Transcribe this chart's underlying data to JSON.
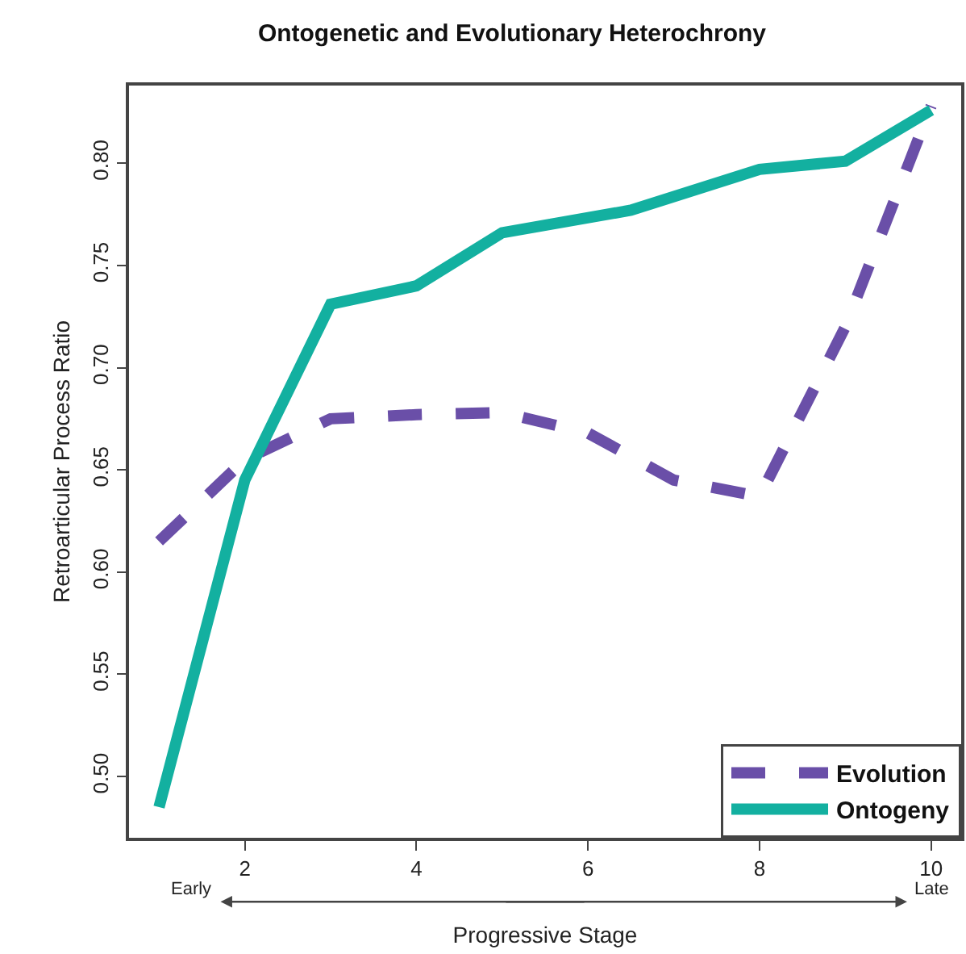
{
  "chart_data": {
    "type": "line",
    "title": "Ontogenetic and Evolutionary Heterochrony",
    "xlabel": "Progressive Stage",
    "ylabel": "Retroarticular Process Ratio",
    "series": [
      {
        "name": "Evolution",
        "color": "#6a4fa8",
        "line_style": "dashed",
        "x": [
          1,
          2,
          3,
          4,
          5,
          6,
          7,
          8,
          9,
          10
        ],
        "values": [
          0.615,
          0.655,
          0.675,
          0.677,
          0.678,
          0.668,
          0.645,
          0.637,
          0.72,
          0.828
        ]
      },
      {
        "name": "Ontogeny",
        "color": "#13b0a0",
        "line_style": "solid",
        "x": [
          1,
          2,
          3,
          4,
          5,
          6.5,
          8,
          9,
          10
        ],
        "values": [
          0.485,
          0.645,
          0.731,
          0.74,
          0.766,
          0.777,
          0.797,
          0.801,
          0.826
        ]
      }
    ],
    "xlim": [
      0.65,
      10.35
    ],
    "ylim": [
      0.47,
      0.838
    ],
    "xticks": [
      2,
      4,
      6,
      8,
      10
    ],
    "yticks": [
      {
        "value": 0.5,
        "label": "0.50"
      },
      {
        "value": 0.55,
        "label": "0.55"
      },
      {
        "value": 0.6,
        "label": "0.60"
      },
      {
        "value": 0.65,
        "label": "0.65"
      },
      {
        "value": 0.7,
        "label": "0.70"
      },
      {
        "value": 0.75,
        "label": "0.75"
      },
      {
        "value": 0.8,
        "label": "0.80"
      }
    ],
    "grid": false,
    "legend": "bottom right",
    "annotations": [
      "Early",
      "Late"
    ]
  }
}
